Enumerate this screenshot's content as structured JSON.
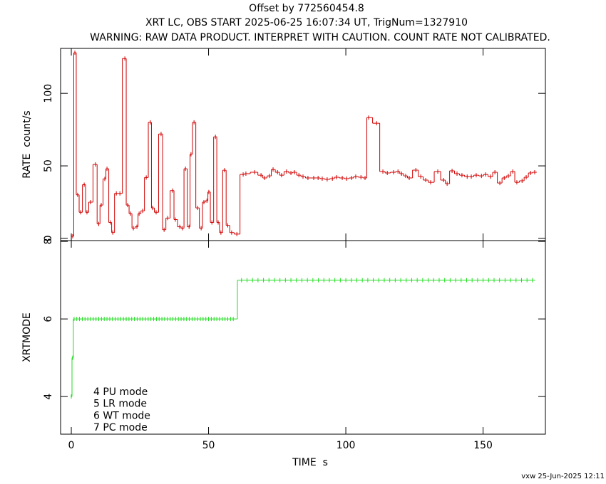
{
  "chart_data": [
    {
      "type": "step",
      "title": "Offset by 772560454.8",
      "subtitle": "XRT LC, OBS START 2025-06-25 16:07:34 UT, TrigNum=1327910",
      "annotations": [
        "WARNING: RAW DATA PRODUCT. INTERPRET WITH CAUTION. COUNT RATE NOT CALIBRATED."
      ],
      "ylabel": "RATE  count/s",
      "color": "#d00000",
      "xlim": [
        -3.9,
        172.7
      ],
      "xticks": [
        0,
        50,
        100,
        150
      ],
      "ylim": [
        -1.5,
        131
      ],
      "yticks": [
        0,
        50,
        100
      ],
      "x": [
        0.5,
        1.3,
        2.3,
        3.4,
        4.7,
        5.7,
        7.0,
        8.8,
        10.0,
        10.9,
        12.2,
        13.0,
        14.3,
        15.1,
        16.4,
        17.7,
        19.5,
        20.5,
        21.6,
        22.6,
        23.9,
        24.7,
        26.0,
        27.3,
        28.8,
        29.6,
        30.9,
        32.7,
        33.8,
        35.1,
        36.9,
        37.9,
        39.5,
        40.5,
        41.6,
        42.9,
        43.6,
        44.7,
        46.0,
        47.3,
        48.3,
        49.4,
        50.1,
        51.2,
        52.5,
        53.5,
        54.5,
        55.8,
        57.0,
        58.4,
        60.3,
        62.6,
        63.6,
        66.8,
        69.1,
        70.4,
        72.2,
        73.5,
        75.1,
        76.6,
        78.4,
        80.0,
        81.3,
        82.9,
        84.4,
        86.2,
        88.3,
        89.9,
        91.4,
        93.2,
        95.1,
        96.6,
        98.7,
        100.3,
        102.1,
        103.6,
        105.5,
        107.0,
        108.3,
        111.2,
        113.5,
        115.1,
        117.4,
        119.0,
        120.3,
        121.8,
        123.1,
        125.5,
        127.3,
        129.1,
        130.9,
        133.5,
        135.6,
        136.9,
        138.7,
        140.5,
        142.3,
        144.2,
        145.7,
        147.5,
        149.4,
        150.9,
        152.7,
        154.3,
        156.1,
        157.7,
        159.2,
        160.8,
        162.3,
        164.2,
        165.7,
        167.3,
        168.8
      ],
      "values": [
        1.5,
        128,
        30,
        18,
        37,
        18,
        25,
        51,
        10,
        23,
        41,
        48,
        11,
        4,
        31,
        31,
        124,
        23,
        17,
        7,
        8,
        17,
        19,
        42,
        80,
        21,
        18,
        72,
        6,
        14,
        33,
        13,
        8,
        7,
        48,
        8,
        58,
        80,
        21,
        7,
        25,
        26,
        32,
        11,
        70,
        11,
        4,
        47,
        9,
        4,
        3,
        44.1,
        44.6,
        45.6,
        43.6,
        41.7,
        43.1,
        47.5,
        45.6,
        43.6,
        46.1,
        45.1,
        45.6,
        43.6,
        42.6,
        41.7,
        41.7,
        41.7,
        41.2,
        40.7,
        41.2,
        42.2,
        41.7,
        41.2,
        41.7,
        42.6,
        42.2,
        41.7,
        83.3,
        79.4,
        46.1,
        45.1,
        45.6,
        46.1,
        44.6,
        43.1,
        41.7,
        47.1,
        42.6,
        40.2,
        38.7,
        46.1,
        40.2,
        37.7,
        46.6,
        44.6,
        43.6,
        42.6,
        42.6,
        43.6,
        43.1,
        44.1,
        42.6,
        45.6,
        38.2,
        41.7,
        43.1,
        46.1,
        38.7,
        39.7,
        42.2,
        45.1,
        45.6
      ]
    },
    {
      "type": "step",
      "ylabel": "XRTMODE",
      "xlabel": "TIME  s",
      "color": "#22dd22",
      "annotations": [
        "4 PU mode",
        "5 LR mode",
        "6 WT mode",
        "7 PC mode"
      ],
      "footer": "vxw 25-Jun-2025 12:11",
      "xlim": [
        -3.9,
        172.7
      ],
      "xticks": [
        0,
        50,
        100,
        150
      ],
      "ylim": [
        3.03,
        8.02
      ],
      "yticks": [
        4,
        6,
        8
      ],
      "x": [
        0,
        0.5,
        1,
        2,
        3,
        4,
        5,
        6,
        7,
        8,
        9,
        10,
        11,
        12,
        13,
        14,
        15,
        16,
        17,
        18,
        19,
        20,
        21,
        22,
        23,
        24,
        25,
        26,
        27,
        28,
        29,
        30,
        31,
        32,
        33,
        34,
        35,
        36,
        37,
        38,
        39,
        40,
        41,
        42,
        43,
        44,
        45,
        46,
        47,
        48,
        49,
        50,
        51,
        52,
        53,
        54,
        55,
        56,
        57,
        58,
        59,
        62,
        64,
        66,
        68,
        70,
        72,
        74,
        76,
        78,
        80,
        82,
        84,
        86,
        88,
        90,
        92,
        94,
        96,
        98,
        100,
        102,
        104,
        106,
        108,
        110,
        112,
        114,
        116,
        118,
        120,
        122,
        124,
        126,
        128,
        130,
        132,
        134,
        136,
        138,
        140,
        142,
        144,
        146,
        148,
        150,
        152,
        154,
        156,
        158,
        160,
        162,
        164,
        166,
        168
      ],
      "values": [
        4,
        5,
        6,
        6,
        6,
        6,
        6,
        6,
        6,
        6,
        6,
        6,
        6,
        6,
        6,
        6,
        6,
        6,
        6,
        6,
        6,
        6,
        6,
        6,
        6,
        6,
        6,
        6,
        6,
        6,
        6,
        6,
        6,
        6,
        6,
        6,
        6,
        6,
        6,
        6,
        6,
        6,
        6,
        6,
        6,
        6,
        6,
        6,
        6,
        6,
        6,
        6,
        6,
        6,
        6,
        6,
        6,
        6,
        6,
        6,
        6,
        7,
        7,
        7,
        7,
        7,
        7,
        7,
        7,
        7,
        7,
        7,
        7,
        7,
        7,
        7,
        7,
        7,
        7,
        7,
        7,
        7,
        7,
        7,
        7,
        7,
        7,
        7,
        7,
        7,
        7,
        7,
        7,
        7,
        7,
        7,
        7,
        7,
        7,
        7,
        7,
        7,
        7,
        7,
        7,
        7,
        7,
        7,
        7,
        7,
        7,
        7,
        7,
        7,
        7
      ]
    }
  ]
}
